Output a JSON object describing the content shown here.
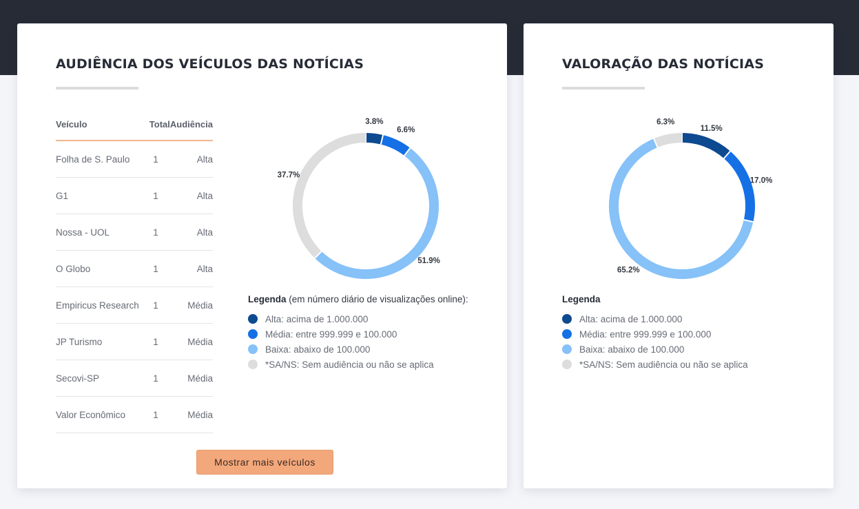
{
  "colors": {
    "alta": "#0d4a8f",
    "media": "#1570e6",
    "baixa": "#86c1f8",
    "sans": "#dddddd",
    "accent": "#f3a87c"
  },
  "audience_card": {
    "title": "AUDIÊNCIA DOS VEÍCULOS DAS NOTÍCIAS",
    "table": {
      "headers": [
        "Veículo",
        "Total",
        "Audiência"
      ],
      "rows": [
        [
          "Folha de S. Paulo",
          "1",
          "Alta"
        ],
        [
          "G1",
          "1",
          "Alta"
        ],
        [
          "Nossa - UOL",
          "1",
          "Alta"
        ],
        [
          "O Globo",
          "1",
          "Alta"
        ],
        [
          "Empiricus Research",
          "1",
          "Média"
        ],
        [
          "JP Turismo",
          "1",
          "Média"
        ],
        [
          "Secovi-SP",
          "1",
          "Média"
        ],
        [
          "Valor Econômico",
          "1",
          "Média"
        ]
      ]
    },
    "legend": {
      "title": "Legenda",
      "subtitle": " (em número diário de visualizações online):",
      "items": [
        "Alta: acima de 1.000.000",
        "Média: entre 999.999 e 100.000",
        "Baixa: abaixo de 100.000",
        "*SA/NS: Sem audiência ou não se aplica"
      ]
    },
    "button_label": "Mostrar mais veículos"
  },
  "valuation_card": {
    "title": "VALORAÇÃO DAS NOTÍCIAS",
    "legend": {
      "title": "Legenda",
      "items": [
        "Alta: acima de 1.000.000",
        "Média: entre 999.999 e 100.000",
        "Baixa: abaixo de 100.000",
        "*SA/NS: Sem audiência ou não se aplica"
      ]
    }
  },
  "chart_data": [
    {
      "type": "pie",
      "categories": [
        "Alta",
        "Média",
        "Baixa",
        "*SA/NS"
      ],
      "values": [
        3.8,
        6.6,
        51.9,
        37.7
      ],
      "labels": [
        "3.8%",
        "6.6%",
        "51.9%",
        "37.7%"
      ]
    },
    {
      "type": "pie",
      "categories": [
        "Alta",
        "Média",
        "Baixa",
        "*SA/NS"
      ],
      "values": [
        11.5,
        17.0,
        65.2,
        6.3
      ],
      "labels": [
        "11.5%",
        "17.0%",
        "65.2%",
        "6.3%"
      ]
    }
  ]
}
